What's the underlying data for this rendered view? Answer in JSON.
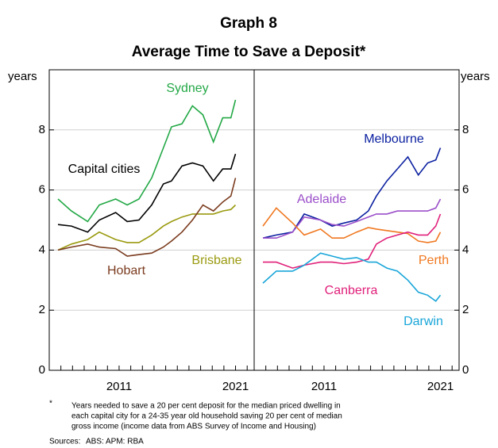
{
  "title": "Graph 8",
  "subtitle": "Average Time to Save a Deposit*",
  "note_marker": "*",
  "note_lines": [
    "Years needed to save a 20 per cent deposit for the median priced dwelling in",
    "each capital city for a 24-35 year old household saving 20 per cent of median",
    "gross income (income data from ABS Survey of Income and Housing)"
  ],
  "sources_label": "Sources:",
  "sources": "ABS: APM: RBA",
  "chart_data": [
    {
      "type": "line",
      "ylabel": "years",
      "yaxis_side": "left",
      "x": [
        2005.75,
        2006.9,
        2008.3,
        2009.3,
        2010.7,
        2011.7,
        2012.7,
        2013.8,
        2014.8,
        2015.5,
        2016.4,
        2017.3,
        2018.2,
        2019.1,
        2019.9,
        2020.6,
        2021.0
      ],
      "xlim": [
        2005,
        2022.6
      ],
      "ylim": [
        0,
        10
      ],
      "yticks": [
        0,
        2,
        4,
        6,
        8
      ],
      "xticks": [
        2011,
        2021
      ],
      "xminor": [
        2006,
        2007,
        2008,
        2009,
        2010,
        2011,
        2012,
        2013,
        2014,
        2015,
        2016,
        2017,
        2018,
        2019,
        2020,
        2021,
        2022
      ],
      "grid": true,
      "series": [
        {
          "name": "Sydney",
          "color": "#22a845",
          "values": [
            5.7,
            5.3,
            4.95,
            5.5,
            5.7,
            5.5,
            5.7,
            6.4,
            7.4,
            8.1,
            8.2,
            8.8,
            8.5,
            7.6,
            8.4,
            8.4,
            9.0
          ]
        },
        {
          "name": "Capital cities",
          "color": "#000000",
          "values": [
            4.85,
            4.8,
            4.6,
            5.0,
            5.25,
            4.95,
            5.0,
            5.5,
            6.2,
            6.3,
            6.8,
            6.9,
            6.8,
            6.3,
            6.7,
            6.7,
            7.2
          ]
        },
        {
          "name": "Brisbane",
          "color": "#9a9a10",
          "values": [
            4.0,
            4.2,
            4.35,
            4.6,
            4.35,
            4.25,
            4.25,
            4.5,
            4.8,
            4.95,
            5.1,
            5.2,
            5.2,
            5.2,
            5.3,
            5.35,
            5.5
          ]
        },
        {
          "name": "Hobart",
          "color": "#7a3b1e",
          "values": [
            4.0,
            4.1,
            4.2,
            4.1,
            4.05,
            3.8,
            3.85,
            3.9,
            4.1,
            4.3,
            4.6,
            5.0,
            5.5,
            5.3,
            5.6,
            5.8,
            6.4
          ]
        }
      ]
    },
    {
      "type": "line",
      "ylabel": "years",
      "yaxis_side": "right",
      "x": [
        2005.75,
        2006.9,
        2008.3,
        2009.3,
        2010.7,
        2011.7,
        2012.7,
        2013.8,
        2014.8,
        2015.5,
        2016.4,
        2017.3,
        2018.2,
        2019.1,
        2019.9,
        2020.6,
        2021.0
      ],
      "xlim": [
        2005,
        2022.6
      ],
      "ylim": [
        0,
        10
      ],
      "yticks": [
        0,
        2,
        4,
        6,
        8
      ],
      "xticks": [
        2011,
        2021
      ],
      "xminor": [
        2006,
        2007,
        2008,
        2009,
        2010,
        2011,
        2012,
        2013,
        2014,
        2015,
        2016,
        2017,
        2018,
        2019,
        2020,
        2021,
        2022
      ],
      "grid": true,
      "series": [
        {
          "name": "Melbourne",
          "color": "#0b20a0",
          "values": [
            4.4,
            4.5,
            4.6,
            5.2,
            5.0,
            4.8,
            4.9,
            5.0,
            5.3,
            5.8,
            6.3,
            6.7,
            7.1,
            6.5,
            6.9,
            7.0,
            7.4
          ]
        },
        {
          "name": "Adelaide",
          "color": "#9b4fc9",
          "values": [
            4.4,
            4.4,
            4.6,
            5.1,
            5.0,
            4.85,
            4.8,
            4.95,
            5.1,
            5.2,
            5.2,
            5.3,
            5.3,
            5.3,
            5.3,
            5.4,
            5.7
          ]
        },
        {
          "name": "Perth",
          "color": "#f07820",
          "values": [
            4.8,
            5.4,
            4.9,
            4.5,
            4.7,
            4.4,
            4.4,
            4.6,
            4.75,
            4.7,
            4.65,
            4.6,
            4.55,
            4.3,
            4.25,
            4.3,
            4.6
          ]
        },
        {
          "name": "Canberra",
          "color": "#e0207a",
          "values": [
            3.6,
            3.6,
            3.4,
            3.5,
            3.6,
            3.6,
            3.55,
            3.6,
            3.7,
            4.2,
            4.4,
            4.5,
            4.6,
            4.5,
            4.5,
            4.8,
            5.2
          ]
        },
        {
          "name": "Darwin",
          "color": "#1aa6d9",
          "values": [
            2.9,
            3.3,
            3.3,
            3.5,
            3.9,
            3.8,
            3.7,
            3.75,
            3.6,
            3.6,
            3.4,
            3.3,
            3.0,
            2.6,
            2.5,
            2.3,
            2.5
          ]
        }
      ]
    }
  ]
}
